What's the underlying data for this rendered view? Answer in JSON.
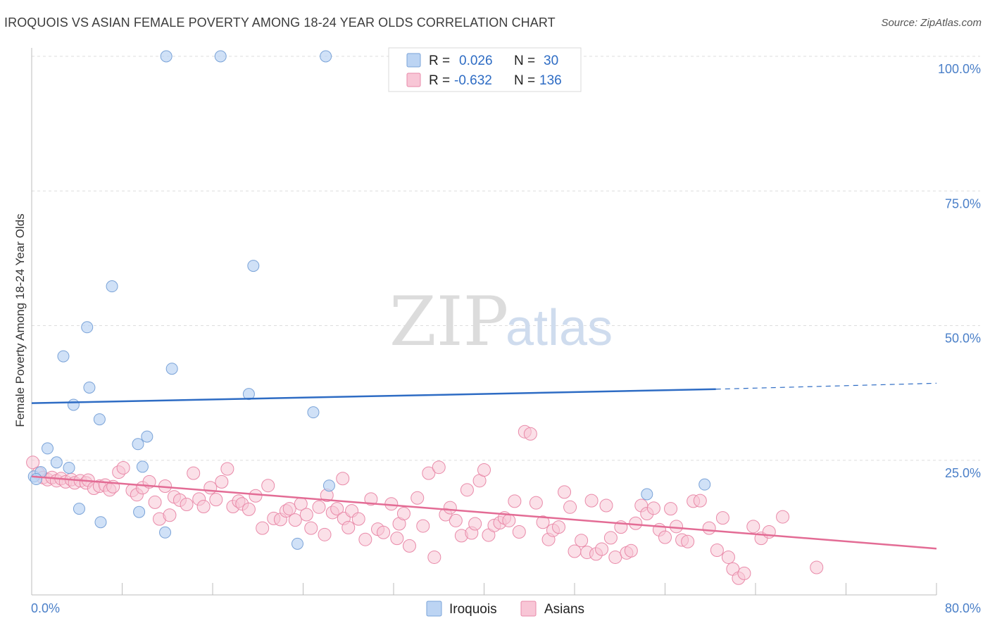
{
  "title": "IROQUOIS VS ASIAN FEMALE POVERTY AMONG 18-24 YEAR OLDS CORRELATION CHART",
  "source": "Source: ZipAtlas.com",
  "watermark": {
    "zip": "ZIP",
    "atlas": "atlas"
  },
  "colors": {
    "iroquois_fill": "#bcd4f3",
    "iroquois_stroke": "#7aa3d8",
    "iroquois_line": "#2e6cc4",
    "asians_fill": "#f8c6d6",
    "asians_stroke": "#e98aa9",
    "asians_line": "#e36c95",
    "tick_label": "#4a7fc8",
    "grid": "#dddddd"
  },
  "legend": {
    "rows": [
      {
        "r_label": "R =",
        "r_value": "0.026",
        "n_label": "N =",
        "n_value": "30"
      },
      {
        "r_label": "R =",
        "r_value": "-0.632",
        "n_label": "N =",
        "n_value": "136"
      }
    ]
  },
  "bottom_legend": [
    "Iroquois",
    "Asians"
  ],
  "chart_data": {
    "type": "scatter",
    "title": "IROQUOIS VS ASIAN FEMALE POVERTY AMONG 18-24 YEAR OLDS CORRELATION CHART",
    "xlabel": "",
    "ylabel": "Female Poverty Among 18-24 Year Olds",
    "xlim": [
      0,
      80
    ],
    "ylim": [
      0,
      100
    ],
    "x_tick_labels": [
      "0.0%",
      "80.0%"
    ],
    "y_tick_labels": [
      "100.0%",
      "75.0%",
      "50.0%",
      "25.0%"
    ],
    "y_ticks": [
      100,
      75,
      50,
      25
    ],
    "grid": true,
    "legend_position": "top-center",
    "series": [
      {
        "name": "Iroquois",
        "r": 0.026,
        "n": 30,
        "trend": {
          "x": [
            0,
            60.5
          ],
          "y": [
            35.6,
            38.2
          ],
          "dashed_to_x": 80,
          "dashed_to_y": 39.3
        },
        "points": [
          [
            0.2,
            22.0
          ],
          [
            0.8,
            22.8
          ],
          [
            1.4,
            27.2
          ],
          [
            2.2,
            24.6
          ],
          [
            3.3,
            23.6
          ],
          [
            2.8,
            44.3
          ],
          [
            3.7,
            35.3
          ],
          [
            4.2,
            16.0
          ],
          [
            4.9,
            49.7
          ],
          [
            5.1,
            38.5
          ],
          [
            6.0,
            32.6
          ],
          [
            6.1,
            13.5
          ],
          [
            7.1,
            57.3
          ],
          [
            9.4,
            28.0
          ],
          [
            9.8,
            23.8
          ],
          [
            10.2,
            29.4
          ],
          [
            9.5,
            15.4
          ],
          [
            11.8,
            11.6
          ],
          [
            11.9,
            100.0
          ],
          [
            12.4,
            42.0
          ],
          [
            16.7,
            100.0
          ],
          [
            19.2,
            37.3
          ],
          [
            19.6,
            61.1
          ],
          [
            23.5,
            9.5
          ],
          [
            24.9,
            33.9
          ],
          [
            26.0,
            100.0
          ],
          [
            26.3,
            20.3
          ],
          [
            54.4,
            18.7
          ],
          [
            59.5,
            20.5
          ],
          [
            0.4,
            21.5
          ]
        ]
      },
      {
        "name": "Asians",
        "r": -0.632,
        "n": 136,
        "trend": {
          "x": [
            0,
            80
          ],
          "y": [
            22.0,
            8.6
          ]
        },
        "points": [
          [
            0.1,
            24.6
          ],
          [
            0.6,
            22.6
          ],
          [
            1.0,
            21.8
          ],
          [
            1.4,
            21.4
          ],
          [
            1.8,
            21.8
          ],
          [
            2.2,
            21.2
          ],
          [
            2.6,
            21.6
          ],
          [
            3.0,
            21.0
          ],
          [
            3.5,
            21.4
          ],
          [
            3.8,
            20.8
          ],
          [
            4.3,
            21.2
          ],
          [
            4.8,
            20.8
          ],
          [
            5.0,
            21.3
          ],
          [
            5.5,
            19.8
          ],
          [
            6.0,
            20.2
          ],
          [
            6.5,
            20.4
          ],
          [
            6.9,
            19.5
          ],
          [
            7.2,
            20.1
          ],
          [
            7.7,
            22.8
          ],
          [
            8.1,
            23.6
          ],
          [
            8.9,
            19.4
          ],
          [
            9.3,
            18.6
          ],
          [
            9.8,
            19.9
          ],
          [
            10.4,
            21.0
          ],
          [
            10.9,
            17.2
          ],
          [
            11.3,
            14.1
          ],
          [
            11.8,
            20.2
          ],
          [
            12.2,
            14.8
          ],
          [
            12.6,
            18.2
          ],
          [
            13.1,
            17.6
          ],
          [
            13.7,
            16.8
          ],
          [
            14.3,
            22.6
          ],
          [
            14.8,
            17.8
          ],
          [
            15.2,
            16.4
          ],
          [
            15.8,
            19.9
          ],
          [
            16.3,
            17.7
          ],
          [
            16.8,
            21.0
          ],
          [
            17.3,
            23.4
          ],
          [
            17.8,
            16.4
          ],
          [
            18.3,
            17.4
          ],
          [
            18.6,
            16.9
          ],
          [
            19.2,
            15.9
          ],
          [
            19.8,
            18.4
          ],
          [
            20.4,
            12.4
          ],
          [
            20.9,
            20.3
          ],
          [
            21.4,
            14.2
          ],
          [
            22.0,
            14.0
          ],
          [
            22.5,
            15.6
          ],
          [
            22.8,
            16.0
          ],
          [
            23.3,
            13.9
          ],
          [
            23.8,
            16.9
          ],
          [
            24.3,
            14.9
          ],
          [
            24.7,
            12.4
          ],
          [
            25.4,
            16.3
          ],
          [
            25.9,
            11.2
          ],
          [
            26.1,
            18.5
          ],
          [
            26.6,
            15.3
          ],
          [
            27.0,
            16.0
          ],
          [
            27.6,
            14.2
          ],
          [
            28.0,
            12.5
          ],
          [
            28.3,
            15.6
          ],
          [
            28.9,
            14.1
          ],
          [
            29.5,
            10.3
          ],
          [
            30.0,
            17.8
          ],
          [
            30.6,
            12.2
          ],
          [
            31.1,
            11.6
          ],
          [
            31.8,
            16.9
          ],
          [
            32.3,
            10.5
          ],
          [
            32.5,
            13.2
          ],
          [
            32.9,
            15.1
          ],
          [
            33.4,
            9.1
          ],
          [
            34.1,
            18.0
          ],
          [
            34.6,
            12.8
          ],
          [
            35.1,
            22.6
          ],
          [
            35.6,
            7.0
          ],
          [
            36.0,
            23.7
          ],
          [
            36.6,
            14.9
          ],
          [
            37.0,
            16.2
          ],
          [
            37.5,
            13.8
          ],
          [
            38.0,
            11.0
          ],
          [
            38.5,
            19.5
          ],
          [
            38.9,
            11.5
          ],
          [
            39.2,
            13.2
          ],
          [
            39.6,
            21.2
          ],
          [
            40.0,
            23.2
          ],
          [
            40.4,
            11.1
          ],
          [
            40.9,
            12.9
          ],
          [
            41.4,
            13.4
          ],
          [
            41.8,
            14.3
          ],
          [
            42.2,
            13.8
          ],
          [
            42.7,
            17.4
          ],
          [
            43.1,
            11.7
          ],
          [
            43.6,
            30.3
          ],
          [
            44.1,
            29.9
          ],
          [
            44.6,
            17.1
          ],
          [
            45.2,
            13.5
          ],
          [
            45.7,
            10.3
          ],
          [
            46.1,
            12.0
          ],
          [
            46.6,
            12.6
          ],
          [
            47.1,
            19.1
          ],
          [
            47.6,
            16.3
          ],
          [
            48.0,
            8.1
          ],
          [
            48.6,
            10.1
          ],
          [
            49.1,
            7.9
          ],
          [
            49.5,
            17.5
          ],
          [
            49.9,
            7.6
          ],
          [
            50.4,
            8.5
          ],
          [
            50.8,
            16.6
          ],
          [
            51.2,
            10.6
          ],
          [
            51.6,
            7.0
          ],
          [
            52.1,
            12.6
          ],
          [
            52.6,
            7.8
          ],
          [
            53.0,
            8.2
          ],
          [
            53.4,
            13.3
          ],
          [
            53.9,
            16.6
          ],
          [
            54.4,
            15.1
          ],
          [
            55.0,
            16.1
          ],
          [
            55.5,
            12.1
          ],
          [
            56.0,
            10.7
          ],
          [
            56.5,
            16.0
          ],
          [
            57.0,
            12.7
          ],
          [
            57.5,
            10.2
          ],
          [
            58.0,
            9.9
          ],
          [
            58.5,
            17.4
          ],
          [
            59.1,
            17.5
          ],
          [
            59.9,
            12.4
          ],
          [
            60.6,
            8.3
          ],
          [
            61.1,
            14.3
          ],
          [
            61.6,
            7.0
          ],
          [
            62.0,
            4.8
          ],
          [
            62.5,
            3.1
          ],
          [
            63.0,
            4.0
          ],
          [
            63.8,
            12.7
          ],
          [
            64.5,
            10.5
          ],
          [
            65.2,
            11.7
          ],
          [
            66.4,
            14.5
          ],
          [
            69.4,
            5.1
          ],
          [
            27.5,
            21.6
          ]
        ]
      }
    ]
  }
}
